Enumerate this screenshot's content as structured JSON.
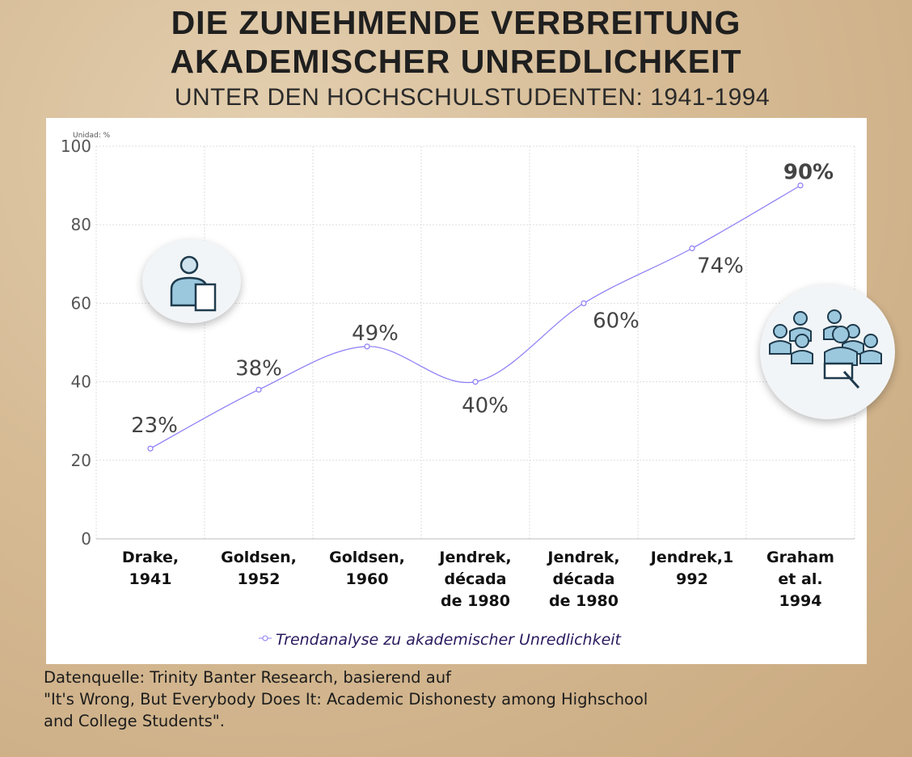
{
  "title_line1": "DIE ZUNEHMENDE VERBREITUNG",
  "title_line2": "AKADEMISCHER UNREDLICHKEIT",
  "subtitle": "UNTER DEN HOCHSCHULSTUDENTEN: 1941-1994",
  "source_lines": [
    "Datenquelle: Trinity Banter Research, basierend auf",
    "\"It's Wrong, But Everybody Does It: Academic Dishonesty among Highschool",
    "and College Students\"."
  ],
  "icons": [
    "teacher-with-document-icon",
    "group-of-students-with-tablet-icon"
  ],
  "chart_data": {
    "type": "line",
    "unit_label": "Unidad: %",
    "categories": [
      [
        "Drake,",
        "1941"
      ],
      [
        "Goldsen,",
        "1952"
      ],
      [
        "Goldsen,",
        "1960"
      ],
      [
        "Jendrek,",
        "década",
        "de 1980"
      ],
      [
        "Jendrek,",
        "década",
        "de 1980"
      ],
      [
        "Jendrek,1",
        "992"
      ],
      [
        "Graham",
        "et al.",
        "1994"
      ]
    ],
    "series": [
      {
        "name": "Trendanalyse zu akademischer Unredlichkeit",
        "values": [
          23,
          38,
          49,
          40,
          60,
          74,
          90
        ],
        "labels": [
          "23%",
          "38%",
          "49%",
          "40%",
          "60%",
          "74%",
          "90%"
        ],
        "color": "#8b7cf6"
      }
    ],
    "ylim": [
      0,
      100
    ],
    "yticks": [
      "0",
      "20",
      "40",
      "60",
      "80",
      "100"
    ],
    "grid": true,
    "legend": "bottom",
    "smooth": true
  }
}
